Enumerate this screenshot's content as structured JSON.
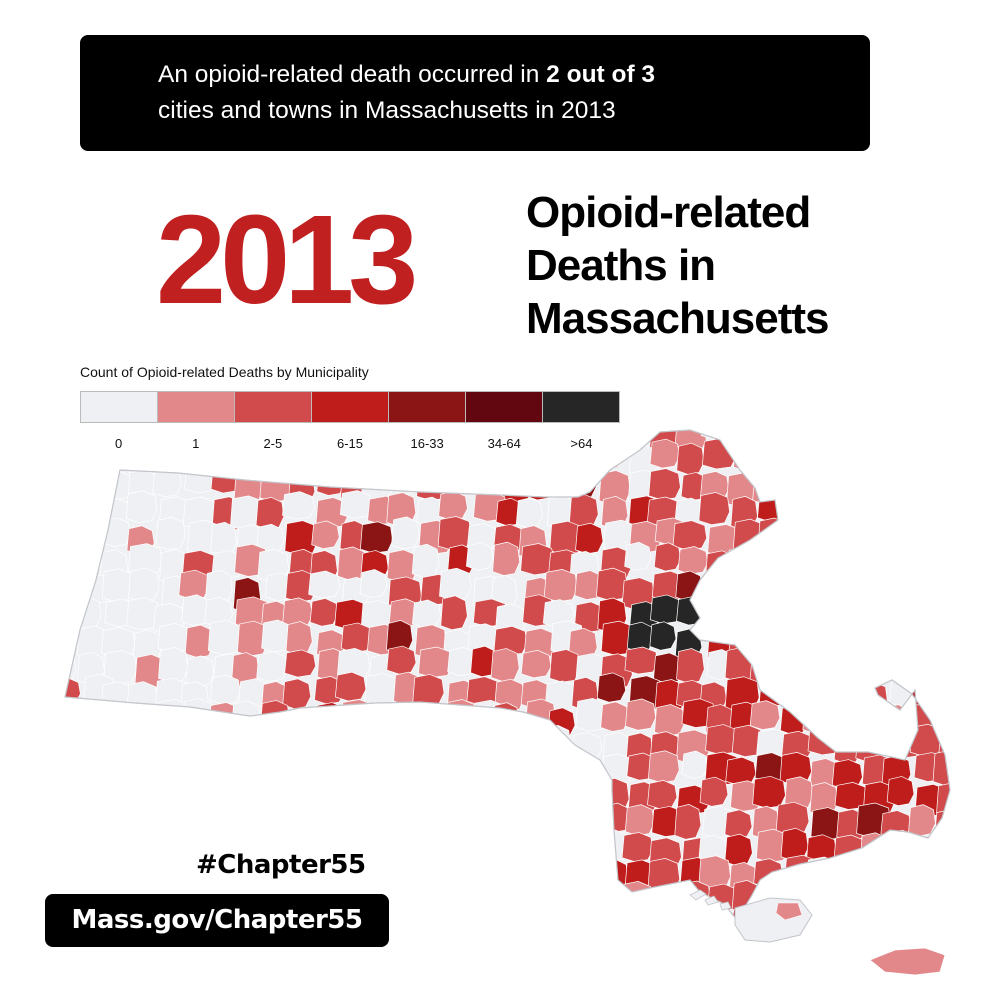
{
  "banner": {
    "text_before": "An opioid-related death occurred in ",
    "text_bold": "2 out of 3",
    "text_after": "cities and towns in Massachusetts in 2013"
  },
  "headline": {
    "year": "2013",
    "year_color": "#c0201f",
    "title_line1": "Opioid-related",
    "title_line2": "Deaths in",
    "title_line3": "Massachusetts"
  },
  "legend": {
    "title": "Count of Opioid-related Deaths by Municipality",
    "bins": [
      {
        "label": "0",
        "color": "#eef0f3"
      },
      {
        "label": "1",
        "color": "#e3888a"
      },
      {
        "label": "2-5",
        "color": "#d14a4c"
      },
      {
        "label": "6-15",
        "color": "#bf1c1c"
      },
      {
        "label": "16-33",
        "color": "#8b1414"
      },
      {
        "label": "34-64",
        "color": "#62060f"
      },
      {
        "label": ">64",
        "color": "#262626"
      }
    ]
  },
  "footer": {
    "hashtag": "#Chapter55",
    "url": "Mass.gov/Chapter55"
  }
}
